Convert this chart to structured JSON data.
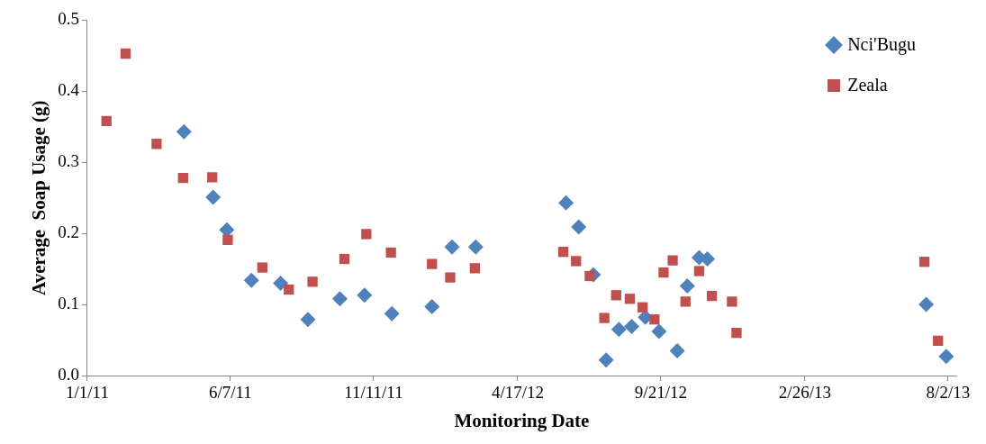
{
  "chart_data": {
    "type": "scatter",
    "xlabel": "Monitoring Date",
    "ylabel": "Average  Soap Usage (g)",
    "xlim": [
      "2011-01-01",
      "2013-08-11"
    ],
    "xticks": [
      {
        "value": "2011-01-01",
        "label": "1/1/11"
      },
      {
        "value": "2011-06-07",
        "label": "6/7/11"
      },
      {
        "value": "2011-11-11",
        "label": "11/11/11"
      },
      {
        "value": "2012-04-17",
        "label": "4/17/12"
      },
      {
        "value": "2012-09-21",
        "label": "9/21/12"
      },
      {
        "value": "2013-02-26",
        "label": "2/26/13"
      },
      {
        "value": "2013-08-02",
        "label": "8/2/13"
      }
    ],
    "ylim": [
      0,
      0.5
    ],
    "yticks": [
      {
        "value": 0,
        "label": "0.0"
      },
      0.1,
      0.2,
      0.3,
      0.4,
      0.5
    ],
    "grid": false,
    "legend": "top right",
    "series": [
      {
        "name": "Nci'Bugu",
        "color": "#4f81bd",
        "marker": "diamond",
        "x": [
          "2011-04-17",
          "2011-05-19",
          "2011-06-03",
          "2011-06-30",
          "2011-08-01",
          "2011-08-31",
          "2011-10-05",
          "2011-11-01",
          "2011-12-01",
          "2012-01-14",
          "2012-02-05",
          "2012-03-02",
          "2012-06-09",
          "2012-06-23",
          "2012-07-09",
          "2012-07-23",
          "2012-08-06",
          "2012-08-20",
          "2012-09-04",
          "2012-09-19",
          "2012-10-09",
          "2012-10-20",
          "2012-11-02",
          "2012-11-11",
          "2013-07-09",
          "2013-07-31"
        ],
        "values": [
          0.343,
          0.251,
          0.205,
          0.134,
          0.13,
          0.079,
          0.108,
          0.113,
          0.087,
          0.097,
          0.181,
          0.181,
          0.243,
          0.209,
          0.142,
          0.022,
          0.065,
          0.069,
          0.082,
          0.062,
          0.035,
          0.126,
          0.166,
          0.164,
          0.1,
          0.027
        ]
      },
      {
        "name": "Zeala",
        "color": "#c0504d",
        "marker": "square",
        "x": [
          "2011-01-22",
          "2011-02-12",
          "2011-03-18",
          "2011-04-16",
          "2011-05-18",
          "2011-06-04",
          "2011-07-12",
          "2011-08-10",
          "2011-09-05",
          "2011-10-10",
          "2011-11-03",
          "2011-11-30",
          "2012-01-14",
          "2012-02-03",
          "2012-03-01",
          "2012-06-06",
          "2012-06-20",
          "2012-07-05",
          "2012-07-21",
          "2012-08-03",
          "2012-08-18",
          "2012-09-01",
          "2012-09-14",
          "2012-09-24",
          "2012-10-04",
          "2012-10-18",
          "2012-11-02",
          "2012-11-16",
          "2012-12-08",
          "2012-12-13",
          "2013-07-07",
          "2013-07-22"
        ],
        "values": [
          0.358,
          0.453,
          0.326,
          0.278,
          0.279,
          0.191,
          0.152,
          0.121,
          0.132,
          0.164,
          0.199,
          0.173,
          0.157,
          0.138,
          0.151,
          0.174,
          0.161,
          0.14,
          0.081,
          0.113,
          0.108,
          0.096,
          0.079,
          0.145,
          0.162,
          0.104,
          0.147,
          0.112,
          0.104,
          0.06,
          0.16,
          0.049
        ]
      }
    ]
  }
}
